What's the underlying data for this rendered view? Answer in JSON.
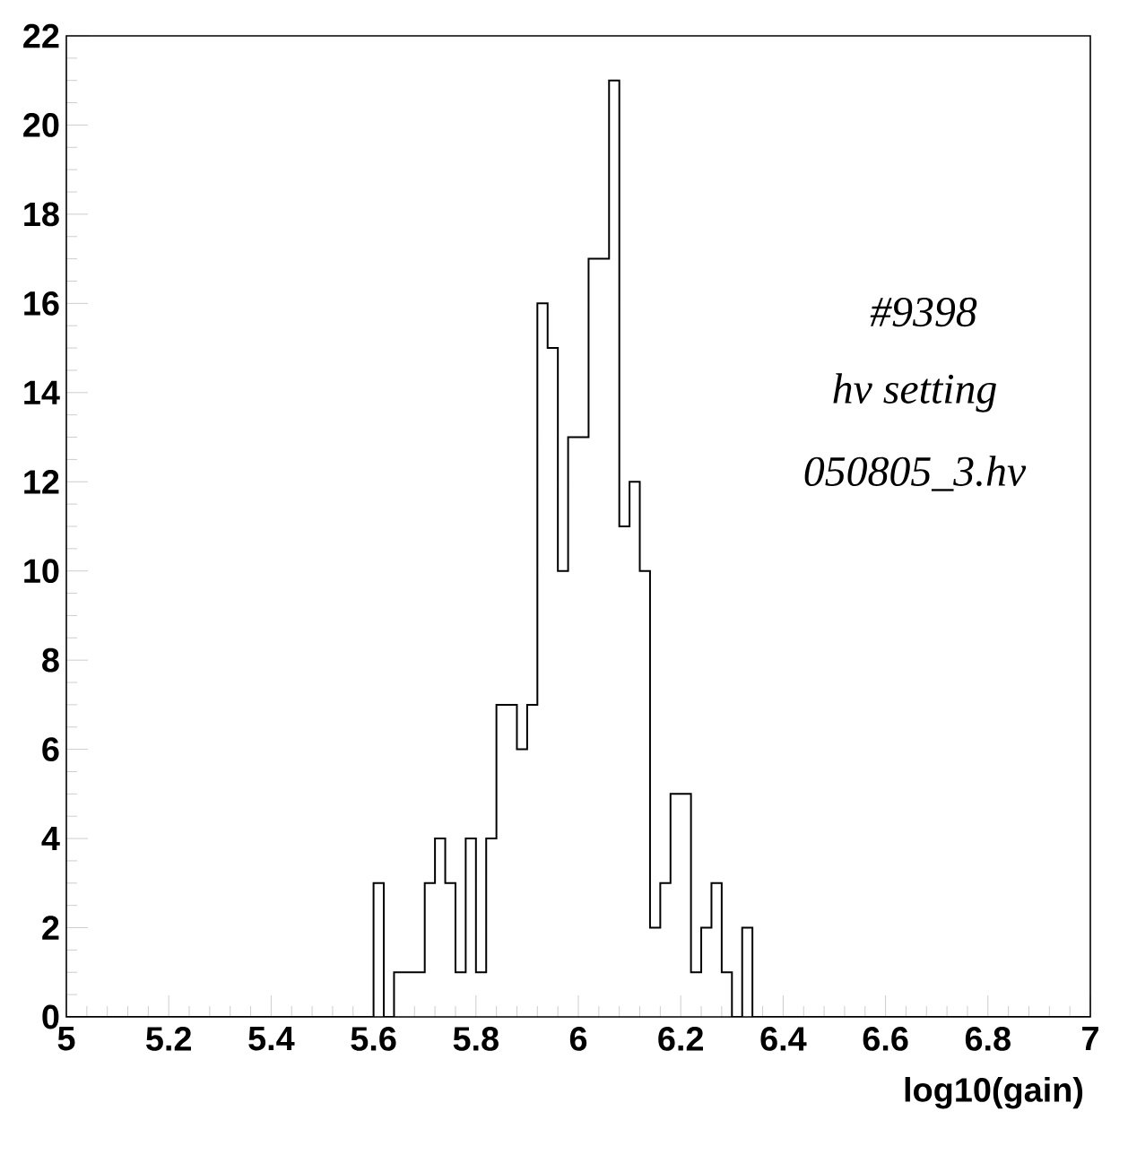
{
  "chart_data": {
    "type": "histogram",
    "xlabel": "log10(gain)",
    "bins": [
      5,
      5.02,
      5.04,
      5.06,
      5.08,
      5.1,
      5.12,
      5.14,
      5.16,
      5.18,
      5.2,
      5.22,
      5.24,
      5.26,
      5.28,
      5.3,
      5.32,
      5.34,
      5.36,
      5.38,
      5.4,
      5.42,
      5.44,
      5.46,
      5.48,
      5.5,
      5.52,
      5.54,
      5.56,
      5.58,
      5.6,
      5.62,
      5.64,
      5.66,
      5.68,
      5.7,
      5.72,
      5.74,
      5.76,
      5.78,
      5.8,
      5.82,
      5.84,
      5.86,
      5.88,
      5.9,
      5.92,
      5.94,
      5.96,
      5.98,
      6,
      6.02,
      6.04,
      6.06,
      6.08,
      6.1,
      6.12,
      6.14,
      6.16,
      6.18,
      6.2,
      6.22,
      6.24,
      6.26,
      6.28,
      6.3,
      6.32,
      6.34,
      6.36,
      6.38,
      6.4,
      6.42,
      6.44,
      6.46,
      6.48,
      6.5,
      6.52,
      6.54,
      6.56,
      6.58,
      6.6,
      6.62,
      6.64,
      6.66,
      6.68,
      6.7,
      6.72,
      6.74,
      6.76,
      6.78,
      6.8,
      6.82,
      6.84,
      6.86,
      6.88,
      6.9,
      6.92,
      6.94,
      6.96,
      6.98,
      7
    ],
    "values": [
      0,
      0,
      0,
      0,
      0,
      0,
      0,
      0,
      0,
      0,
      0,
      0,
      0,
      0,
      0,
      0,
      0,
      0,
      0,
      0,
      0,
      0,
      0,
      0,
      0,
      0,
      0,
      0,
      0,
      0,
      3,
      0,
      1,
      1,
      1,
      3,
      4,
      3,
      1,
      4,
      1,
      4,
      7,
      7,
      6,
      7,
      16,
      15,
      10,
      13,
      13,
      17,
      17,
      21,
      11,
      12,
      10,
      2,
      3,
      5,
      5,
      1,
      2,
      3,
      1,
      0,
      2,
      0,
      0,
      0,
      0,
      0,
      0,
      0,
      0,
      0,
      0,
      0,
      0,
      0,
      0,
      0,
      0,
      0,
      0,
      0,
      0,
      0,
      0,
      0,
      0,
      0,
      0,
      0,
      0,
      0,
      0,
      0,
      0,
      0
    ],
    "color": "#000000",
    "xlim": [
      5,
      7
    ],
    "ylim": [
      0,
      22
    ],
    "xticks": [
      5,
      5.2,
      5.4,
      5.6,
      5.8,
      6,
      6.2,
      6.4,
      6.6,
      6.8,
      7
    ],
    "yticks": [
      0,
      2,
      4,
      6,
      8,
      10,
      12,
      14,
      16,
      18,
      20,
      22
    ],
    "annotations": [
      "#9398",
      "hv setting",
      "050805_3.hv"
    ]
  }
}
